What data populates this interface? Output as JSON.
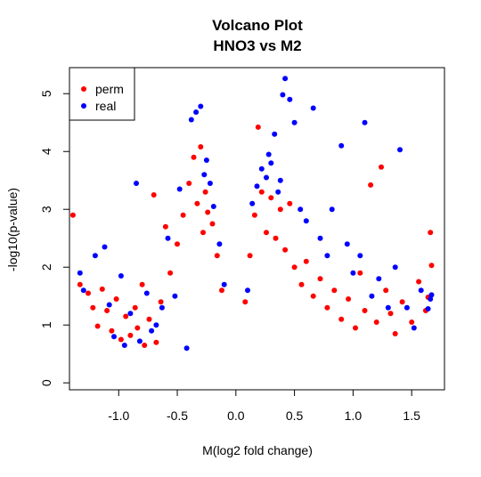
{
  "chart_data": {
    "type": "scatter",
    "title": "Volcano Plot",
    "subtitle": "HNO3 vs M2",
    "xlabel": "M(log2 fold change)",
    "ylabel": "-log10(p-value)",
    "xlim": [
      -1.42,
      1.78
    ],
    "ylim": [
      -0.12,
      5.45
    ],
    "x_ticks": [
      -1.0,
      -0.5,
      0.0,
      0.5,
      1.0,
      1.5
    ],
    "x_tick_labels": [
      "-1.0",
      "-0.5",
      "0.0",
      "0.5",
      "1.0",
      "1.5"
    ],
    "y_ticks": [
      0,
      1,
      2,
      3,
      4,
      5
    ],
    "y_tick_labels": [
      "0",
      "1",
      "2",
      "3",
      "4",
      "5"
    ],
    "grid": false,
    "legend_position": "top-left",
    "series": [
      {
        "name": "perm",
        "color": "#ff0000",
        "points": [
          [
            -1.39,
            2.9
          ],
          [
            -1.33,
            1.7
          ],
          [
            -1.26,
            1.55
          ],
          [
            -1.22,
            1.3
          ],
          [
            -1.18,
            0.98
          ],
          [
            -1.14,
            1.62
          ],
          [
            -1.1,
            1.25
          ],
          [
            -1.06,
            0.9
          ],
          [
            -1.02,
            1.45
          ],
          [
            -0.98,
            0.75
          ],
          [
            -0.94,
            1.15
          ],
          [
            -0.9,
            0.82
          ],
          [
            -0.86,
            1.3
          ],
          [
            -0.84,
            0.95
          ],
          [
            -0.8,
            1.7
          ],
          [
            -0.78,
            0.65
          ],
          [
            -0.74,
            1.1
          ],
          [
            -0.7,
            3.25
          ],
          [
            -0.68,
            0.7
          ],
          [
            -0.64,
            1.4
          ],
          [
            -0.6,
            2.7
          ],
          [
            -0.56,
            1.9
          ],
          [
            -0.5,
            2.4
          ],
          [
            -0.45,
            2.9
          ],
          [
            -0.4,
            3.45
          ],
          [
            -0.36,
            3.9
          ],
          [
            -0.33,
            3.1
          ],
          [
            -0.3,
            4.08
          ],
          [
            -0.28,
            2.6
          ],
          [
            -0.26,
            3.3
          ],
          [
            -0.24,
            2.95
          ],
          [
            -0.2,
            2.75
          ],
          [
            -0.16,
            2.2
          ],
          [
            -0.12,
            1.6
          ],
          [
            0.08,
            1.4
          ],
          [
            0.12,
            2.2
          ],
          [
            0.16,
            2.9
          ],
          [
            0.19,
            4.42
          ],
          [
            0.22,
            3.3
          ],
          [
            0.26,
            2.6
          ],
          [
            0.3,
            3.2
          ],
          [
            0.34,
            2.5
          ],
          [
            0.38,
            3.0
          ],
          [
            0.42,
            2.3
          ],
          [
            0.46,
            3.1
          ],
          [
            0.5,
            2.0
          ],
          [
            0.56,
            1.7
          ],
          [
            0.6,
            2.1
          ],
          [
            0.66,
            1.5
          ],
          [
            0.72,
            1.8
          ],
          [
            0.78,
            1.3
          ],
          [
            0.84,
            1.6
          ],
          [
            0.9,
            1.1
          ],
          [
            0.96,
            1.45
          ],
          [
            1.02,
            0.95
          ],
          [
            1.06,
            1.9
          ],
          [
            1.1,
            1.25
          ],
          [
            1.15,
            3.42
          ],
          [
            1.2,
            1.05
          ],
          [
            1.24,
            3.73
          ],
          [
            1.28,
            1.6
          ],
          [
            1.32,
            1.2
          ],
          [
            1.36,
            0.85
          ],
          [
            1.42,
            1.4
          ],
          [
            1.5,
            1.05
          ],
          [
            1.56,
            1.75
          ],
          [
            1.62,
            1.25
          ],
          [
            1.66,
            2.6
          ],
          [
            1.67,
            2.03
          ],
          [
            1.64,
            1.48
          ]
        ]
      },
      {
        "name": "real",
        "color": "#0000ff",
        "points": [
          [
            -1.33,
            1.9
          ],
          [
            -1.3,
            1.6
          ],
          [
            -1.2,
            2.2
          ],
          [
            -1.12,
            2.35
          ],
          [
            -1.08,
            1.35
          ],
          [
            -1.04,
            0.8
          ],
          [
            -0.98,
            1.85
          ],
          [
            -0.95,
            0.65
          ],
          [
            -0.9,
            1.2
          ],
          [
            -0.85,
            3.45
          ],
          [
            -0.82,
            0.72
          ],
          [
            -0.76,
            1.55
          ],
          [
            -0.72,
            0.9
          ],
          [
            -0.68,
            1.0
          ],
          [
            -0.63,
            1.3
          ],
          [
            -0.58,
            2.5
          ],
          [
            -0.52,
            1.5
          ],
          [
            -0.48,
            3.35
          ],
          [
            -0.42,
            0.6
          ],
          [
            -0.38,
            4.55
          ],
          [
            -0.34,
            4.68
          ],
          [
            -0.3,
            4.78
          ],
          [
            -0.27,
            3.6
          ],
          [
            -0.25,
            3.85
          ],
          [
            -0.22,
            3.45
          ],
          [
            -0.19,
            3.05
          ],
          [
            -0.14,
            2.4
          ],
          [
            -0.1,
            1.7
          ],
          [
            0.1,
            1.6
          ],
          [
            0.14,
            3.1
          ],
          [
            0.18,
            3.4
          ],
          [
            0.22,
            3.7
          ],
          [
            0.26,
            3.55
          ],
          [
            0.28,
            3.95
          ],
          [
            0.3,
            3.8
          ],
          [
            0.33,
            4.3
          ],
          [
            0.36,
            3.3
          ],
          [
            0.38,
            3.5
          ],
          [
            0.4,
            4.98
          ],
          [
            0.42,
            5.26
          ],
          [
            0.46,
            4.9
          ],
          [
            0.5,
            4.5
          ],
          [
            0.55,
            3.0
          ],
          [
            0.6,
            2.8
          ],
          [
            0.66,
            4.75
          ],
          [
            0.72,
            2.5
          ],
          [
            0.78,
            2.2
          ],
          [
            0.82,
            3.0
          ],
          [
            0.9,
            4.1
          ],
          [
            0.95,
            2.4
          ],
          [
            1.0,
            1.9
          ],
          [
            1.06,
            2.2
          ],
          [
            1.1,
            4.5
          ],
          [
            1.16,
            1.5
          ],
          [
            1.22,
            1.8
          ],
          [
            1.3,
            1.3
          ],
          [
            1.36,
            2.0
          ],
          [
            1.4,
            4.03
          ],
          [
            1.46,
            1.3
          ],
          [
            1.52,
            0.95
          ],
          [
            1.58,
            1.6
          ],
          [
            1.64,
            1.28
          ],
          [
            1.66,
            1.45
          ],
          [
            1.67,
            1.52
          ]
        ]
      }
    ]
  }
}
